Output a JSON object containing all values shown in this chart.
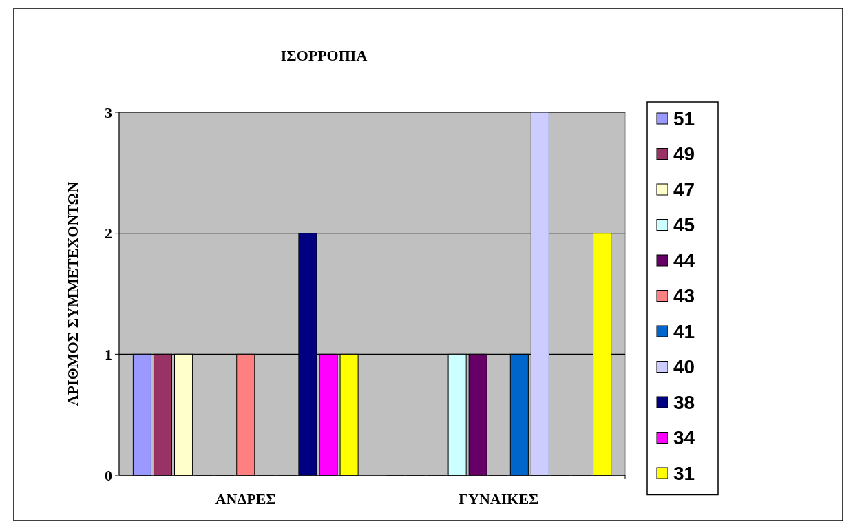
{
  "chart_data": {
    "type": "bar",
    "title": "ΙΣΟΡΡΟΠΙΑ",
    "ylabel": "ΑΡΙΘΜΟΣ ΣΥΜΜΕΤΕΧΟΝΤΩΝ",
    "categories": [
      "ΑΝΔΡΕΣ",
      "ΓΥΝΑΙΚΕΣ"
    ],
    "series": [
      {
        "name": "51",
        "color": "#9999ff",
        "values": [
          1,
          0
        ]
      },
      {
        "name": "49",
        "color": "#993366",
        "values": [
          1,
          0
        ]
      },
      {
        "name": "47",
        "color": "#ffffcc",
        "values": [
          1,
          0
        ]
      },
      {
        "name": "45",
        "color": "#ccffff",
        "values": [
          0,
          1
        ]
      },
      {
        "name": "44",
        "color": "#660066",
        "values": [
          0,
          1
        ]
      },
      {
        "name": "43",
        "color": "#ff8080",
        "values": [
          1,
          0
        ]
      },
      {
        "name": "41",
        "color": "#0066cc",
        "values": [
          0,
          1
        ]
      },
      {
        "name": "40",
        "color": "#ccccff",
        "values": [
          0,
          3
        ]
      },
      {
        "name": "38",
        "color": "#000080",
        "values": [
          2,
          0
        ]
      },
      {
        "name": "34",
        "color": "#ff00ff",
        "values": [
          1,
          0
        ]
      },
      {
        "name": "31",
        "color": "#ffff00",
        "values": [
          1,
          2
        ]
      }
    ],
    "ylim": [
      0,
      3
    ],
    "yticks": [
      0,
      1,
      2,
      3
    ],
    "grid": "y",
    "legend": "right"
  }
}
